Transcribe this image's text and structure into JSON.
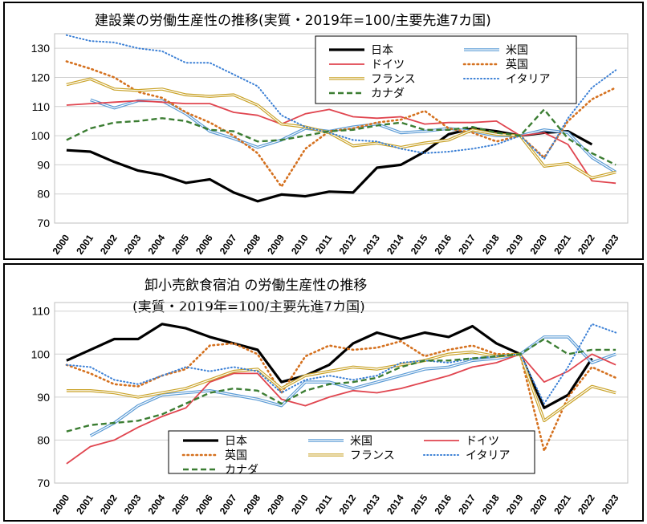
{
  "chart_data": [
    {
      "type": "line",
      "title": "建設業の労働生産性の推移(実質・2019年=100/主要先進7カ国)",
      "x": [
        "2000",
        "2001",
        "2002",
        "2003",
        "2004",
        "2005",
        "2006",
        "2007",
        "2008",
        "2009",
        "2010",
        "2011",
        "2012",
        "2013",
        "2014",
        "2015",
        "2016",
        "2017",
        "2018",
        "2019",
        "2020",
        "2021",
        "2022",
        "2023"
      ],
      "ylim": [
        70,
        135
      ],
      "yticks": [
        70,
        80,
        90,
        100,
        110,
        120,
        130
      ],
      "grid": true,
      "legend_position": "top-right",
      "series": [
        {
          "name": "日本",
          "color": "#000000",
          "style": "solid-thick",
          "values": [
            95,
            94.5,
            91,
            88,
            86.5,
            83.8,
            85,
            80.5,
            77.5,
            79.8,
            79.2,
            80.8,
            80.5,
            89,
            90,
            94.5,
            100.5,
            102.5,
            101.5,
            100,
            101,
            101.5,
            97,
            null
          ]
        },
        {
          "name": "米国",
          "color": "#5b9bd5",
          "style": "double",
          "values": [
            null,
            112.3,
            109.5,
            112,
            112,
            107.5,
            101.5,
            99,
            96,
            98.5,
            102.5,
            101.5,
            103,
            104,
            101,
            101.5,
            102.5,
            101.5,
            100,
            100,
            102,
            101,
            92.5,
            87.5
          ]
        },
        {
          "name": "ドイツ",
          "color": "#e0454f",
          "style": "solid",
          "values": [
            110.5,
            111,
            111.5,
            112,
            111.5,
            111,
            111,
            108,
            107,
            104,
            107.5,
            109,
            106.5,
            106,
            106.5,
            104,
            104.5,
            104.5,
            105,
            100,
            101,
            97,
            84.5,
            83.7
          ]
        },
        {
          "name": "英国",
          "color": "#d5711f",
          "style": "dotted",
          "values": [
            125.5,
            123,
            120,
            115,
            113,
            108,
            104.5,
            100,
            94,
            82.5,
            95.5,
            101.5,
            102.5,
            104.5,
            105.5,
            108.5,
            102.5,
            101,
            98,
            100,
            92.5,
            105,
            112.5,
            116.5
          ]
        },
        {
          "name": "フランス",
          "color": "#c9a227",
          "style": "double",
          "values": [
            117.5,
            119.5,
            116,
            115.5,
            116,
            114,
            113.5,
            114,
            110.5,
            104,
            103,
            101,
            96.5,
            97.5,
            96,
            97.5,
            98.5,
            102,
            100.5,
            100,
            89.5,
            90.5,
            85.5,
            87.5
          ]
        },
        {
          "name": "イタリア",
          "color": "#3a7fd5",
          "style": "dotted-fine",
          "values": [
            134.5,
            132.5,
            132,
            130,
            129,
            125,
            125,
            121,
            117,
            107,
            103,
            101,
            98.5,
            98,
            95.5,
            94,
            94.5,
            95.5,
            97,
            100,
            92,
            106,
            116.5,
            122.5
          ]
        },
        {
          "name": "カナダ",
          "color": "#3b7d32",
          "style": "dashed",
          "values": [
            98.5,
            102.5,
            104.5,
            105,
            106,
            105,
            102,
            101.5,
            98,
            98.5,
            100,
            101.5,
            102,
            103.5,
            104.5,
            102,
            102,
            103,
            101,
            100,
            109,
            99,
            94,
            90
          ]
        }
      ]
    },
    {
      "type": "line",
      "title": "卸小売飲食宿泊 の労働生産性の推移",
      "subtitle": "(実質・2019年=100/主要先進7カ国)",
      "x": [
        "2000",
        "2001",
        "2002",
        "2003",
        "2004",
        "2005",
        "2006",
        "2007",
        "2008",
        "2009",
        "2010",
        "2011",
        "2012",
        "2013",
        "2014",
        "2015",
        "2016",
        "2017",
        "2018",
        "2019",
        "2020",
        "2021",
        "2022",
        "2023"
      ],
      "ylim": [
        70,
        112
      ],
      "yticks": [
        70,
        80,
        90,
        100,
        110
      ],
      "grid": true,
      "legend_position": "bottom-center",
      "series": [
        {
          "name": "日本",
          "color": "#000000",
          "style": "solid-thick",
          "values": [
            98.5,
            101,
            103.5,
            103.5,
            107,
            106,
            104,
            102.5,
            101,
            93.5,
            95,
            97.5,
            102.5,
            105,
            103.5,
            105,
            104,
            106.5,
            102.5,
            100,
            87.5,
            90.5,
            99,
            null
          ]
        },
        {
          "name": "米国",
          "color": "#5b9bd5",
          "style": "double",
          "values": [
            null,
            81,
            84,
            88,
            90.5,
            91,
            91.5,
            90.5,
            89.5,
            88,
            93.5,
            93.5,
            92,
            93.5,
            95,
            96.5,
            97,
            98.5,
            99,
            100,
            104,
            104,
            98,
            100
          ]
        },
        {
          "name": "ドイツ",
          "color": "#e0454f",
          "style": "solid",
          "values": [
            74.5,
            78.5,
            80,
            83,
            85.5,
            87.5,
            93.5,
            95.5,
            95.5,
            89.5,
            88,
            90,
            91.5,
            91,
            92,
            93.5,
            95,
            97,
            98,
            100,
            93.5,
            96,
            100,
            97.5
          ]
        },
        {
          "name": "英国",
          "color": "#d5711f",
          "style": "dotted",
          "values": [
            97.5,
            95.5,
            93,
            92.5,
            95,
            96.5,
            102,
            102.5,
            100,
            91,
            99.5,
            102,
            101,
            101.5,
            103,
            99.5,
            101,
            102,
            100,
            100,
            77.5,
            90,
            97,
            94.5
          ]
        },
        {
          "name": "フランス",
          "color": "#c9a227",
          "style": "double",
          "values": [
            91.5,
            91.5,
            91,
            90,
            91,
            92,
            94,
            96,
            96.5,
            92,
            95,
            96,
            97,
            96.5,
            97.5,
            98.5,
            100,
            100.5,
            99.5,
            100,
            84.5,
            88.5,
            92.5,
            91
          ]
        },
        {
          "name": "イタリア",
          "color": "#3a7fd5",
          "style": "dotted-fine",
          "values": [
            97.5,
            97,
            94,
            93,
            95,
            97,
            96,
            97,
            96,
            91,
            94,
            95,
            94,
            95,
            98,
            98.5,
            98,
            99,
            99.5,
            100,
            88.5,
            97,
            107,
            105
          ]
        },
        {
          "name": "カナダ",
          "color": "#3b7d32",
          "style": "dashed",
          "values": [
            82,
            83.5,
            84,
            84.5,
            86,
            88.5,
            91,
            92,
            91.5,
            88.5,
            91.5,
            93,
            93.5,
            94.5,
            97,
            98.5,
            98.5,
            99,
            99.5,
            100,
            103.5,
            100,
            101,
            101
          ]
        }
      ]
    }
  ]
}
